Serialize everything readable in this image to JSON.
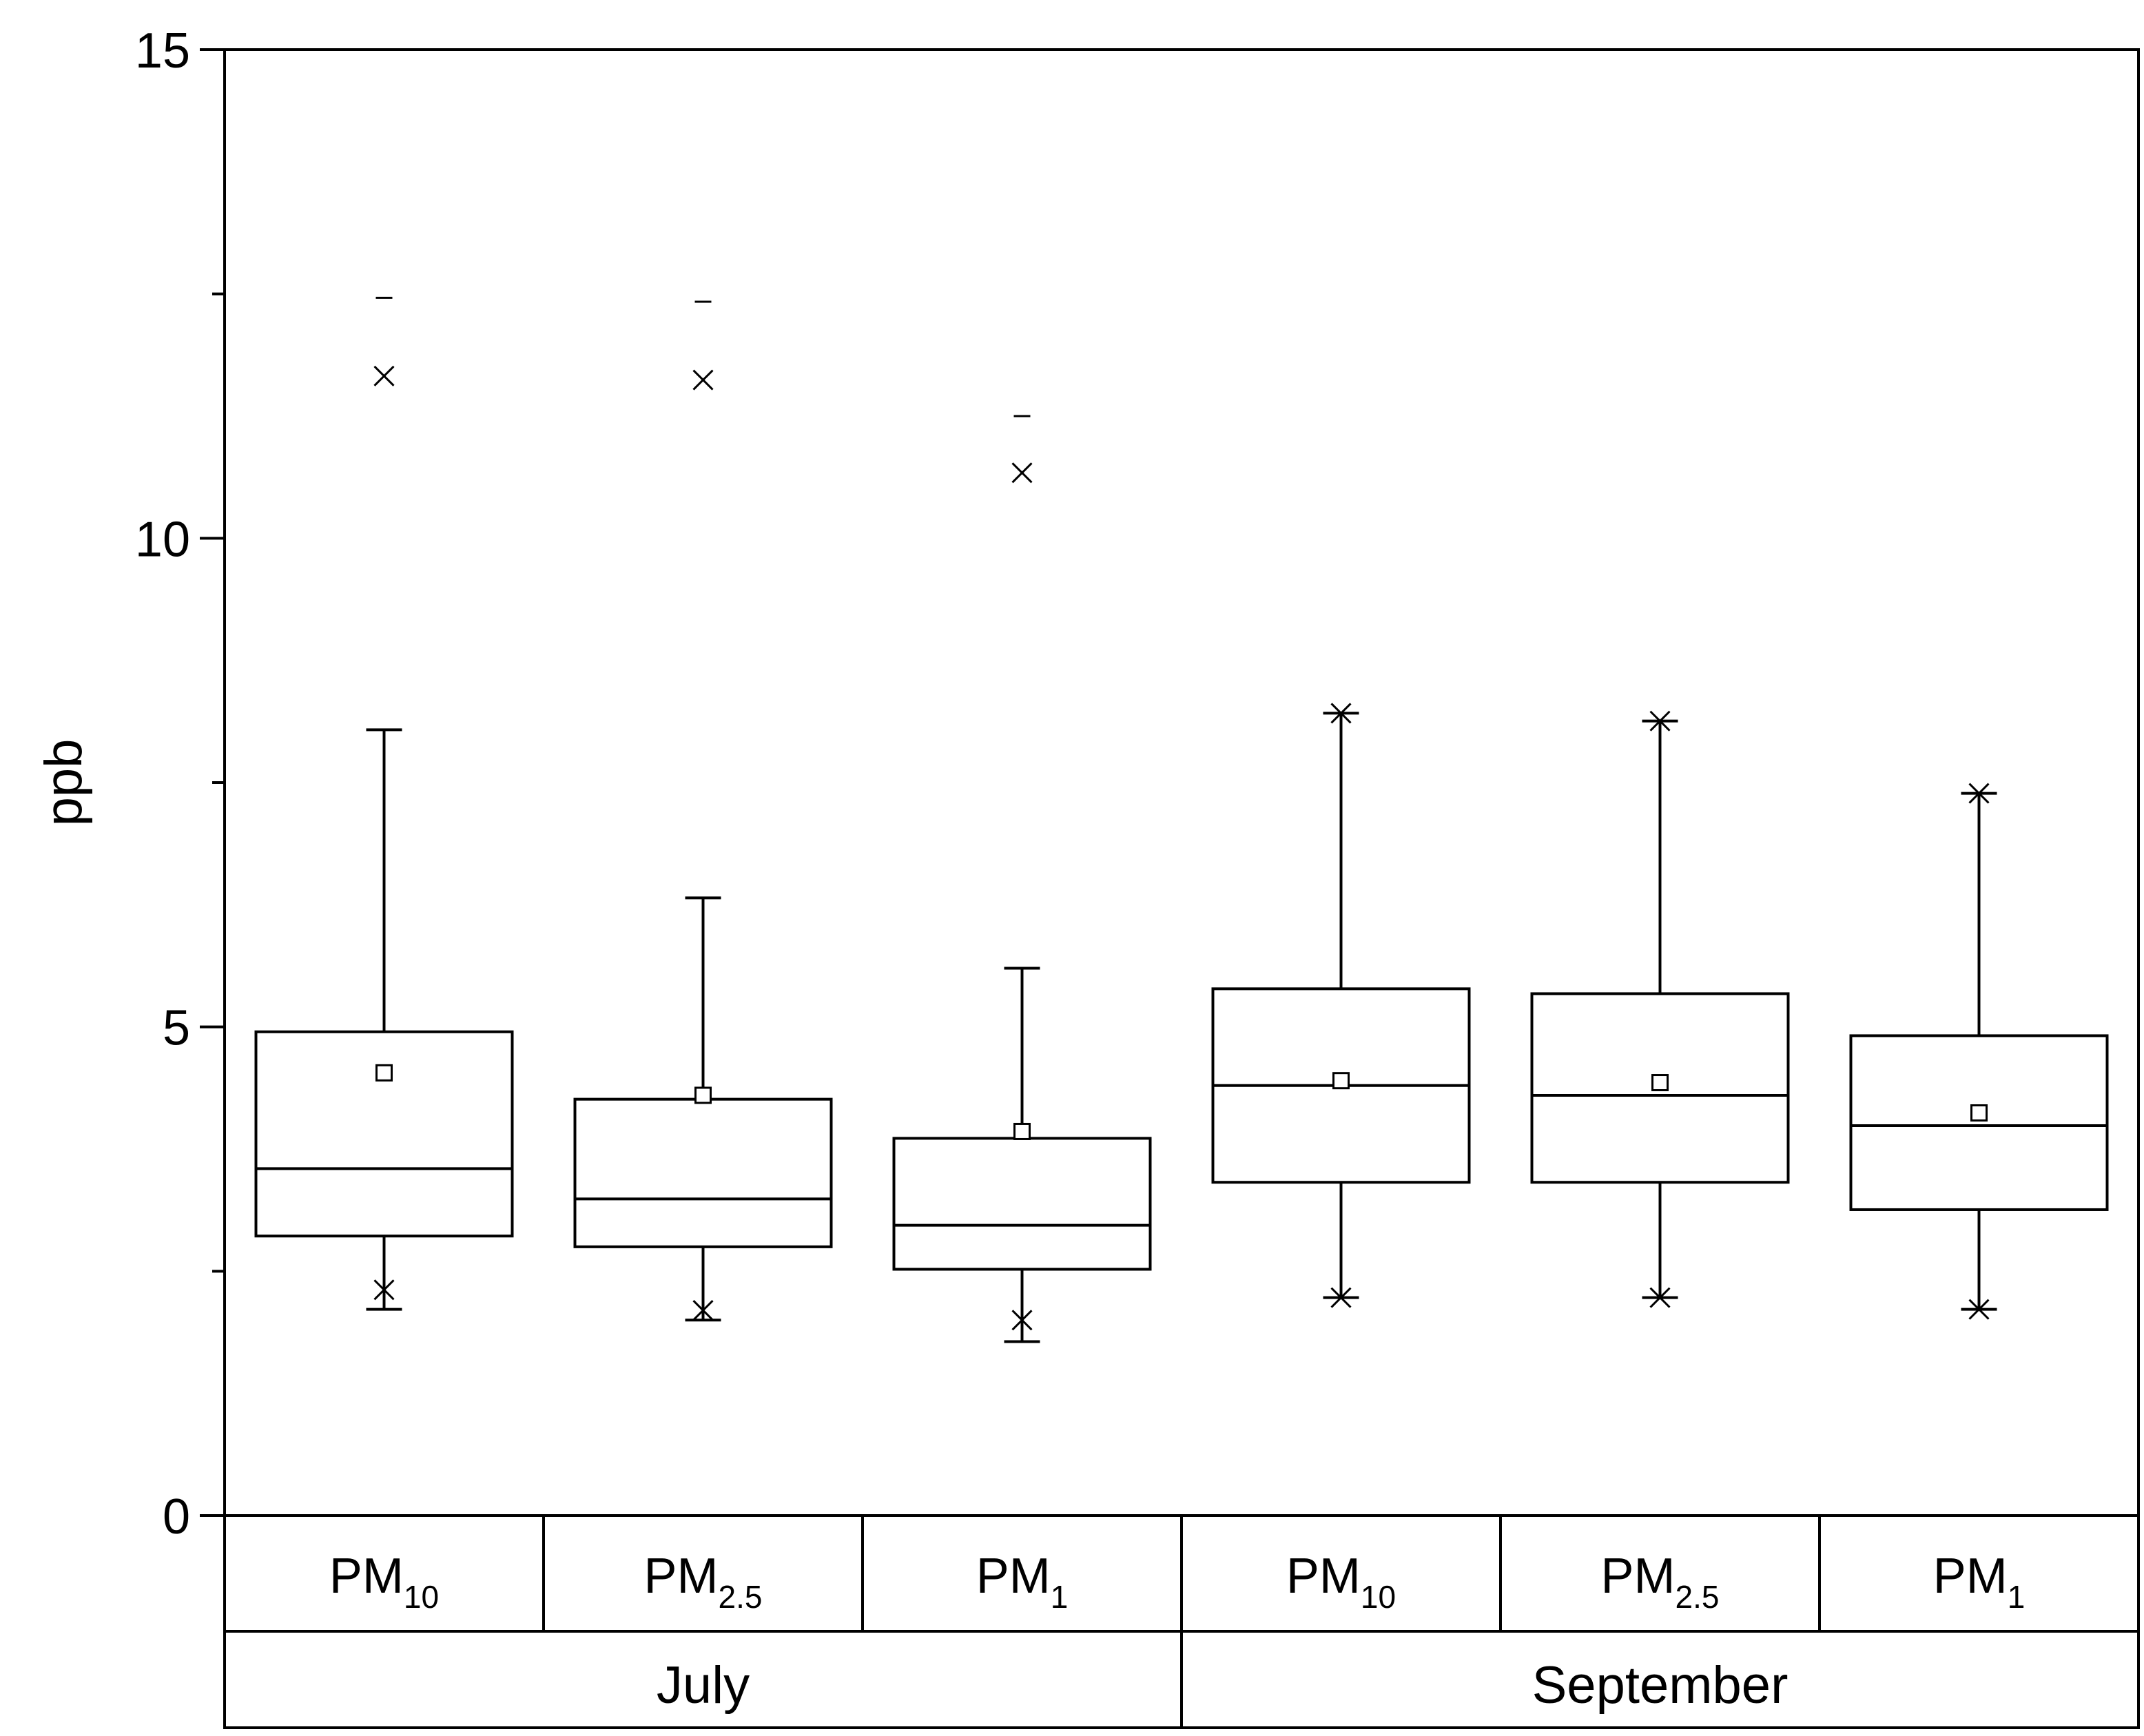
{
  "chart_data": {
    "type": "box",
    "title": "",
    "ylabel": "ppb",
    "xlabel": "",
    "ylim": [
      0,
      15
    ],
    "yticks": [
      0,
      5,
      10,
      15
    ],
    "grid": false,
    "groups": [
      {
        "label": "July",
        "categories": [
          {
            "main": "PM",
            "sub": "10",
            "whisker_low": 2.11,
            "q1": 2.86,
            "median": 3.55,
            "q3": 4.95,
            "whisker_high": 8.04,
            "mean": 4.53,
            "p1": 2.31,
            "p99": 11.66,
            "max": 12.46
          },
          {
            "main": "PM",
            "sub": "2.5",
            "whisker_low": 2.0,
            "q1": 2.75,
            "median": 3.24,
            "q3": 4.26,
            "whisker_high": 6.32,
            "mean": 4.3,
            "p1": 2.1,
            "p99": 11.62,
            "max": 12.42
          },
          {
            "main": "PM",
            "sub": "1",
            "whisker_low": 1.78,
            "q1": 2.52,
            "median": 2.97,
            "q3": 3.86,
            "whisker_high": 5.6,
            "mean": 3.93,
            "p1": 2.0,
            "p99": 10.67,
            "max": 11.25
          }
        ]
      },
      {
        "label": "September",
        "categories": [
          {
            "main": "PM",
            "sub": "10",
            "whisker_low": 2.23,
            "q1": 3.41,
            "median": 4.4,
            "q3": 5.39,
            "whisker_high": 8.21,
            "mean": 4.45,
            "p1": 2.23,
            "p99": 8.21,
            "max": null
          },
          {
            "main": "PM",
            "sub": "2.5",
            "whisker_low": 2.23,
            "q1": 3.41,
            "median": 4.3,
            "q3": 5.34,
            "whisker_high": 8.13,
            "mean": 4.43,
            "p1": 2.23,
            "p99": 8.13,
            "max": null
          },
          {
            "main": "PM",
            "sub": "1",
            "whisker_low": 2.11,
            "q1": 3.13,
            "median": 3.99,
            "q3": 4.91,
            "whisker_high": 7.39,
            "mean": 4.12,
            "p1": 2.11,
            "p99": 7.39,
            "max": null
          }
        ]
      }
    ]
  }
}
